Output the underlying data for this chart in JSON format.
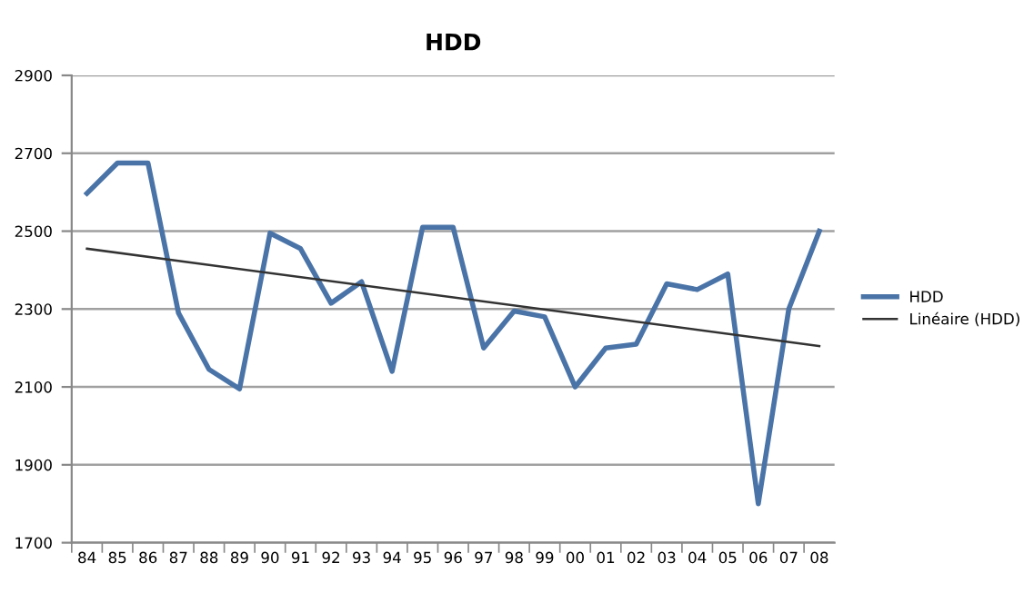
{
  "chart_data": {
    "type": "line",
    "title": "HDD",
    "categories": [
      "84",
      "85",
      "86",
      "87",
      "88",
      "89",
      "90",
      "91",
      "92",
      "93",
      "94",
      "95",
      "96",
      "97",
      "98",
      "99",
      "00",
      "01",
      "02",
      "03",
      "04",
      "05",
      "06",
      "07",
      "08"
    ],
    "series": [
      {
        "name": "HDD",
        "color": "#4a74a8",
        "values": [
          2597,
          2675,
          2675,
          2290,
          2145,
          2095,
          2495,
          2455,
          2315,
          2370,
          2140,
          2510,
          2510,
          2200,
          2295,
          2280,
          2100,
          2200,
          2210,
          2365,
          2350,
          2390,
          1800,
          2300,
          2500
        ]
      },
      {
        "name": "Linéaire (HDD)",
        "color": "#333333",
        "type": "line",
        "x": [
          "84",
          "08"
        ],
        "values": [
          2455,
          2205
        ]
      }
    ],
    "ylim": [
      1700,
      2900
    ],
    "yticks": [
      1700,
      1900,
      2100,
      2300,
      2500,
      2700,
      2900
    ],
    "grid": "y",
    "legend": "right",
    "marker": "none",
    "line_style": "solid"
  }
}
